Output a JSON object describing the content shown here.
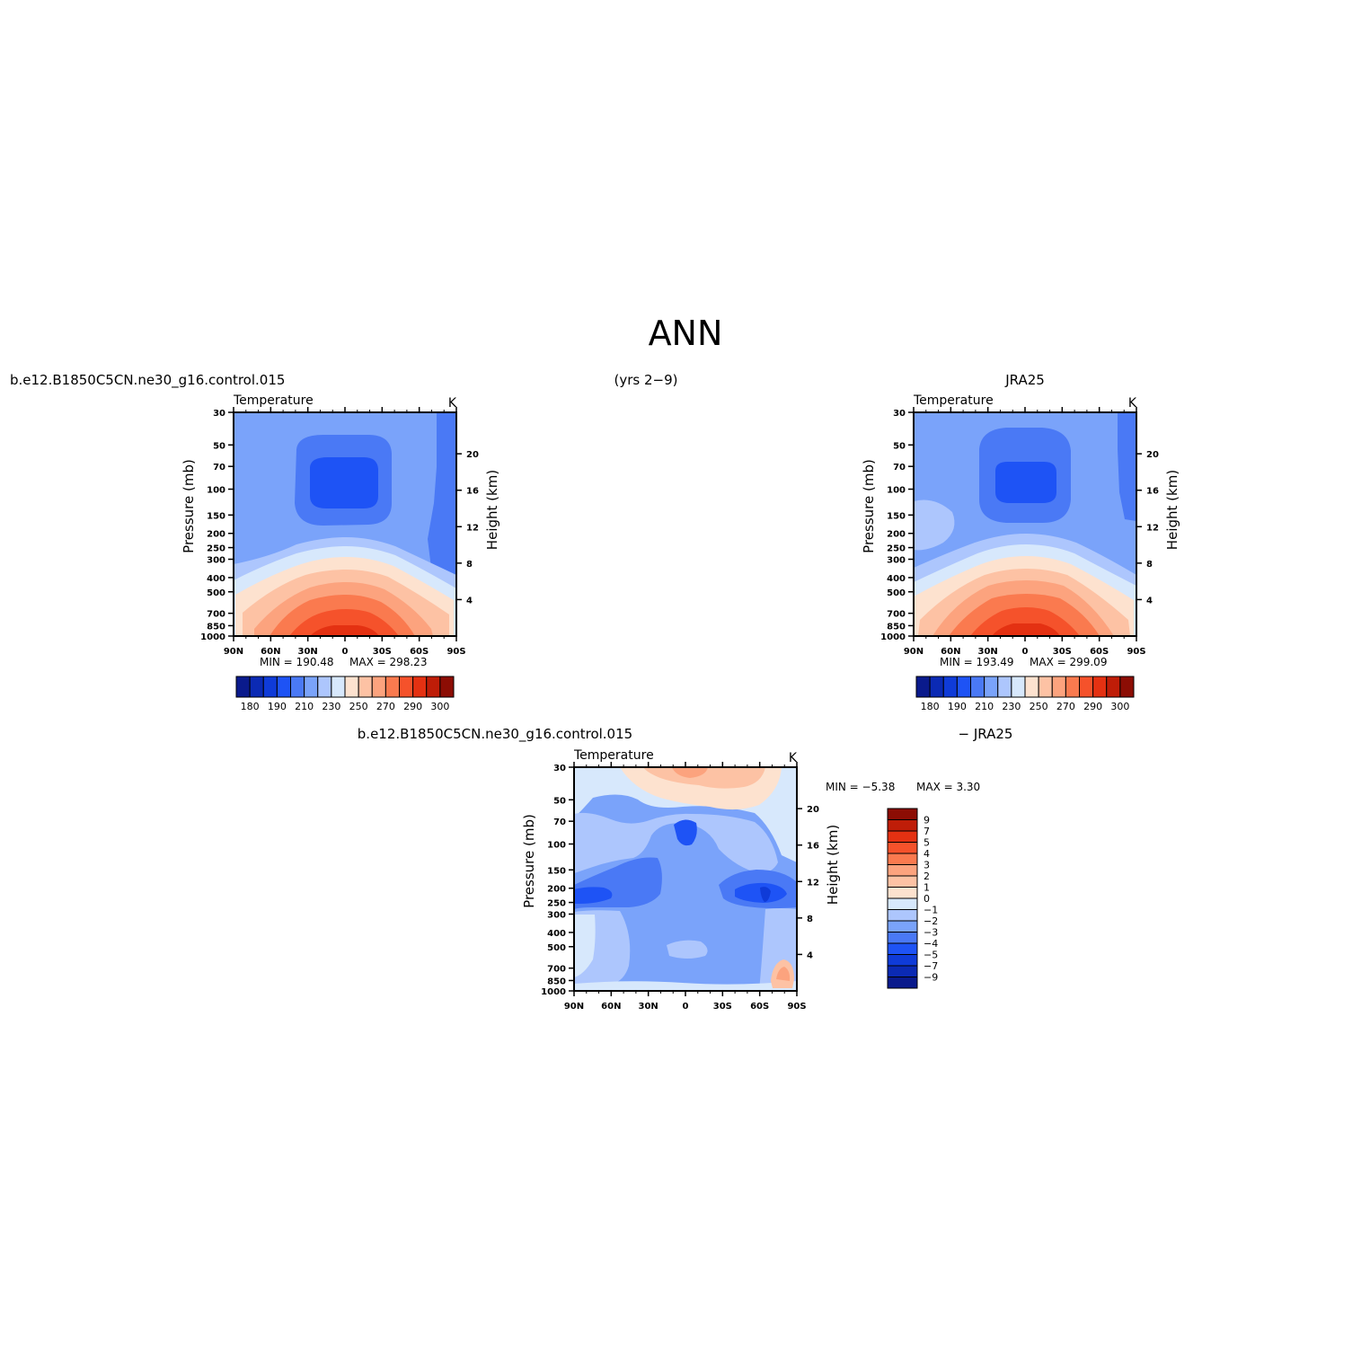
{
  "figure": {
    "title": "ANN",
    "case_name": "b.e12.B1850C5CN.ne30_g16.control.015",
    "years": "(yrs 2−9)",
    "obs_name": "JRA25",
    "diff_case": "b.e12.B1850C5CN.ne30_g16.control.015",
    "diff_obs": "− JRA25"
  },
  "palettes": {
    "abs": [
      "#0a1a8c",
      "#0b2ab4",
      "#0f3bd8",
      "#1e53f5",
      "#4a79f5",
      "#7aa3fa",
      "#adc6fd",
      "#d7e8fc",
      "#fde2cf",
      "#fdc2a4",
      "#fca37e",
      "#fa7a4f",
      "#f5522b",
      "#e43112",
      "#bf1d08",
      "#8c0d04"
    ],
    "diff": [
      "#0a1a8c",
      "#0b2ab4",
      "#0f3bd8",
      "#1e53f5",
      "#4a79f5",
      "#7aa3fa",
      "#adc6fd",
      "#d7e8fc",
      "#fde2cf",
      "#fdc2a4",
      "#fca37e",
      "#fa7a4f",
      "#f5522b",
      "#e43112",
      "#bf1d08",
      "#8c0d04"
    ]
  },
  "chart_data": [
    {
      "type": "heatmap",
      "name": "model",
      "title": "Temperature",
      "units": "K",
      "ylabel": "Pressure (mb)",
      "ylabel2": "Height (km)",
      "xticks": [
        "90N",
        "60N",
        "30N",
        "0",
        "30S",
        "60S",
        "90S"
      ],
      "yticks": [
        "30",
        "50",
        "70",
        "100",
        "150",
        "200",
        "250",
        "300",
        "400",
        "500",
        "700",
        "850",
        "1000"
      ],
      "yticks2": [
        "20",
        "16",
        "12",
        "8",
        "4"
      ],
      "ylim": [
        1000,
        30
      ],
      "xlim": [
        90,
        -90
      ],
      "min_text": "MIN = 190.48",
      "max_text": "MAX = 298.23",
      "min": 190.48,
      "max": 298.23,
      "levels": [
        175,
        180,
        185,
        190,
        200,
        210,
        220,
        230,
        240,
        250,
        260,
        270,
        280,
        290,
        300
      ],
      "colorbar_labels": [
        "180",
        "190",
        "210",
        "230",
        "250",
        "270",
        "290",
        "300"
      ]
    },
    {
      "type": "heatmap",
      "name": "obs",
      "title": "Temperature",
      "units": "K",
      "ylabel": "Pressure (mb)",
      "ylabel2": "Height (km)",
      "xticks": [
        "90N",
        "60N",
        "30N",
        "0",
        "30S",
        "60S",
        "90S"
      ],
      "yticks": [
        "30",
        "50",
        "70",
        "100",
        "150",
        "200",
        "250",
        "300",
        "400",
        "500",
        "700",
        "850",
        "1000"
      ],
      "yticks2": [
        "20",
        "16",
        "12",
        "8",
        "4"
      ],
      "ylim": [
        1000,
        30
      ],
      "xlim": [
        90,
        -90
      ],
      "min_text": "MIN = 193.49",
      "max_text": "MAX = 299.09",
      "min": 193.49,
      "max": 299.09,
      "levels": [
        175,
        180,
        185,
        190,
        200,
        210,
        220,
        230,
        240,
        250,
        260,
        270,
        280,
        290,
        300
      ],
      "colorbar_labels": [
        "180",
        "190",
        "210",
        "230",
        "250",
        "270",
        "290",
        "300"
      ]
    },
    {
      "type": "heatmap",
      "name": "difference",
      "title": "Temperature",
      "units": "K",
      "ylabel": "Pressure (mb)",
      "ylabel2": "Height (km)",
      "xticks": [
        "90N",
        "60N",
        "30N",
        "0",
        "30S",
        "60S",
        "90S"
      ],
      "yticks": [
        "30",
        "50",
        "70",
        "100",
        "150",
        "200",
        "250",
        "300",
        "400",
        "500",
        "700",
        "850",
        "1000"
      ],
      "yticks2": [
        "20",
        "16",
        "12",
        "8",
        "4"
      ],
      "ylim": [
        1000,
        30
      ],
      "xlim": [
        90,
        -90
      ],
      "min_text": "MIN = −5.38",
      "max_text": "MAX = 3.30",
      "min": -5.38,
      "max": 3.3,
      "levels": [
        -9,
        -7,
        -5,
        -4,
        -3,
        -2,
        -1,
        0,
        1,
        2,
        3,
        4,
        5,
        7,
        9
      ],
      "colorbar_labels": [
        "9",
        "7",
        "5",
        "4",
        "3",
        "2",
        "1",
        "0",
        "−1",
        "−2",
        "−3",
        "−4",
        "−5",
        "−7",
        "−9"
      ]
    }
  ]
}
